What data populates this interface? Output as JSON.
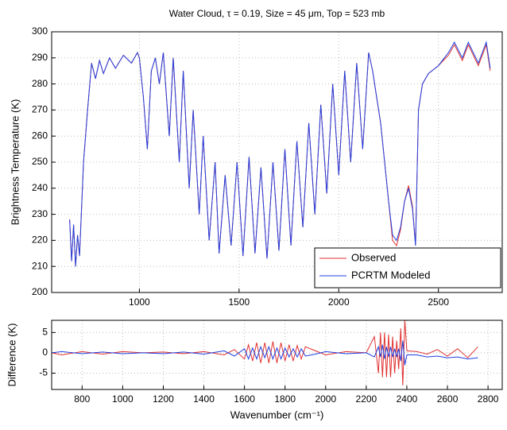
{
  "chart_data": [
    {
      "type": "line",
      "title": "Water Cloud, τ = 0.19, Size = 45  μm, Top = 523 mb",
      "y_label": "Brightness Temperature (K)",
      "xlim": [
        560,
        2820
      ],
      "ylim": [
        200,
        300
      ],
      "xticks": [
        1000,
        1500,
        2000,
        2500
      ],
      "yticks": [
        200,
        210,
        220,
        230,
        240,
        250,
        260,
        270,
        280,
        290,
        300
      ],
      "grid": true,
      "legend": "lower right",
      "x": [
        650,
        660,
        670,
        680,
        690,
        700,
        720,
        740,
        760,
        780,
        800,
        820,
        850,
        880,
        920,
        960,
        990,
        1000,
        1020,
        1040,
        1060,
        1080,
        1100,
        1120,
        1150,
        1170,
        1200,
        1220,
        1250,
        1270,
        1300,
        1320,
        1350,
        1380,
        1400,
        1430,
        1460,
        1490,
        1520,
        1550,
        1580,
        1610,
        1640,
        1670,
        1700,
        1730,
        1760,
        1790,
        1820,
        1850,
        1880,
        1910,
        1940,
        1970,
        2000,
        2030,
        2060,
        2090,
        2120,
        2150,
        2170,
        2190,
        2210,
        2230,
        2250,
        2270,
        2290,
        2310,
        2330,
        2350,
        2370,
        2385,
        2400,
        2420,
        2450,
        2500,
        2550,
        2580,
        2620,
        2650,
        2700,
        2740,
        2760
      ],
      "series": [
        {
          "name": "Observed",
          "color": "#e03030",
          "values": [
            228,
            212,
            226,
            210,
            222,
            214,
            250,
            270,
            288,
            282,
            289,
            284,
            290,
            286,
            291,
            288,
            292,
            290,
            275,
            255,
            285,
            290,
            280,
            292,
            260,
            290,
            250,
            285,
            240,
            270,
            230,
            260,
            220,
            250,
            215,
            245,
            218,
            250,
            214,
            252,
            215,
            248,
            213,
            250,
            216,
            255,
            218,
            258,
            225,
            265,
            230,
            272,
            238,
            280,
            245,
            285,
            250,
            288,
            255,
            292,
            285,
            275,
            265,
            250,
            235,
            220,
            218,
            224,
            235,
            241,
            233,
            218,
            270,
            280,
            284,
            287,
            291,
            295,
            289,
            295,
            287,
            295,
            285
          ]
        },
        {
          "name": "PCRTM Modeled",
          "color": "#2040e0",
          "values": [
            228,
            212,
            226,
            210,
            222,
            214,
            250,
            270,
            288,
            282,
            289,
            284,
            290,
            286,
            291,
            288,
            292,
            290,
            275,
            255,
            285,
            290,
            280,
            292,
            260,
            290,
            250,
            285,
            240,
            270,
            230,
            260,
            220,
            250,
            215,
            245,
            218,
            250,
            214,
            252,
            215,
            248,
            213,
            250,
            216,
            255,
            218,
            258,
            225,
            265,
            230,
            272,
            238,
            280,
            245,
            285,
            250,
            288,
            255,
            292,
            285,
            275,
            265,
            250,
            235,
            222,
            220,
            225,
            235,
            240,
            232,
            218,
            270,
            280,
            284,
            287,
            292,
            296,
            290,
            296,
            288,
            296,
            286
          ]
        }
      ]
    },
    {
      "type": "line",
      "x_label": "Wavenumber (cm⁻¹)",
      "y_label": "Difference (K)",
      "xlim": [
        650,
        2870
      ],
      "ylim": [
        -9,
        8
      ],
      "xticks": [
        800,
        1000,
        1200,
        1400,
        1600,
        1800,
        2000,
        2200,
        2400,
        2600,
        2800
      ],
      "yticks": [
        -5,
        0,
        5
      ],
      "grid": true,
      "x": [
        650,
        700,
        800,
        900,
        1000,
        1100,
        1200,
        1300,
        1400,
        1500,
        1550,
        1600,
        1620,
        1640,
        1660,
        1680,
        1700,
        1720,
        1740,
        1760,
        1780,
        1800,
        1820,
        1840,
        1860,
        1880,
        1900,
        1950,
        2000,
        2100,
        2200,
        2240,
        2260,
        2270,
        2280,
        2290,
        2300,
        2310,
        2320,
        2330,
        2340,
        2350,
        2360,
        2370,
        2380,
        2390,
        2400,
        2450,
        2500,
        2550,
        2600,
        2650,
        2700,
        2750
      ],
      "series": [
        {
          "color": "#e03030",
          "values": [
            0,
            -0.5,
            0.3,
            -0.3,
            0.3,
            0,
            0.2,
            -0.2,
            0.3,
            -0.5,
            0.8,
            -1.5,
            2,
            -2,
            2.5,
            -2.5,
            2.5,
            -2.5,
            2.8,
            -2.5,
            2.5,
            -2,
            2,
            -2,
            1.8,
            -1.5,
            1.5,
            0.5,
            -0.5,
            0.3,
            0,
            4,
            -5,
            5,
            -6,
            5,
            -6,
            4.5,
            -6,
            4,
            -5,
            3,
            -4,
            6,
            -8,
            8,
            0.5,
            0.3,
            -0.3,
            0.8,
            -0.8,
            1,
            -1.2,
            1.5
          ]
        },
        {
          "color": "#2040e0",
          "values": [
            0,
            0.3,
            -0.2,
            0.2,
            -0.2,
            0,
            -0.2,
            0.2,
            -0.3,
            0.5,
            -0.8,
            1,
            -1.5,
            1.2,
            -1.5,
            1.5,
            -1.2,
            1.5,
            -1.5,
            1.2,
            -1.5,
            1.2,
            -1,
            1,
            -1,
            1,
            -0.8,
            -0.3,
            0.3,
            -0.2,
            0,
            -1,
            1.5,
            -1,
            2,
            -1.5,
            1.5,
            -1,
            1.5,
            -1,
            1,
            -1,
            1,
            -2,
            3,
            -3,
            -0.5,
            -0.5,
            -1,
            -0.8,
            -1.2,
            -1,
            -1.5,
            -1.2
          ]
        }
      ]
    }
  ]
}
